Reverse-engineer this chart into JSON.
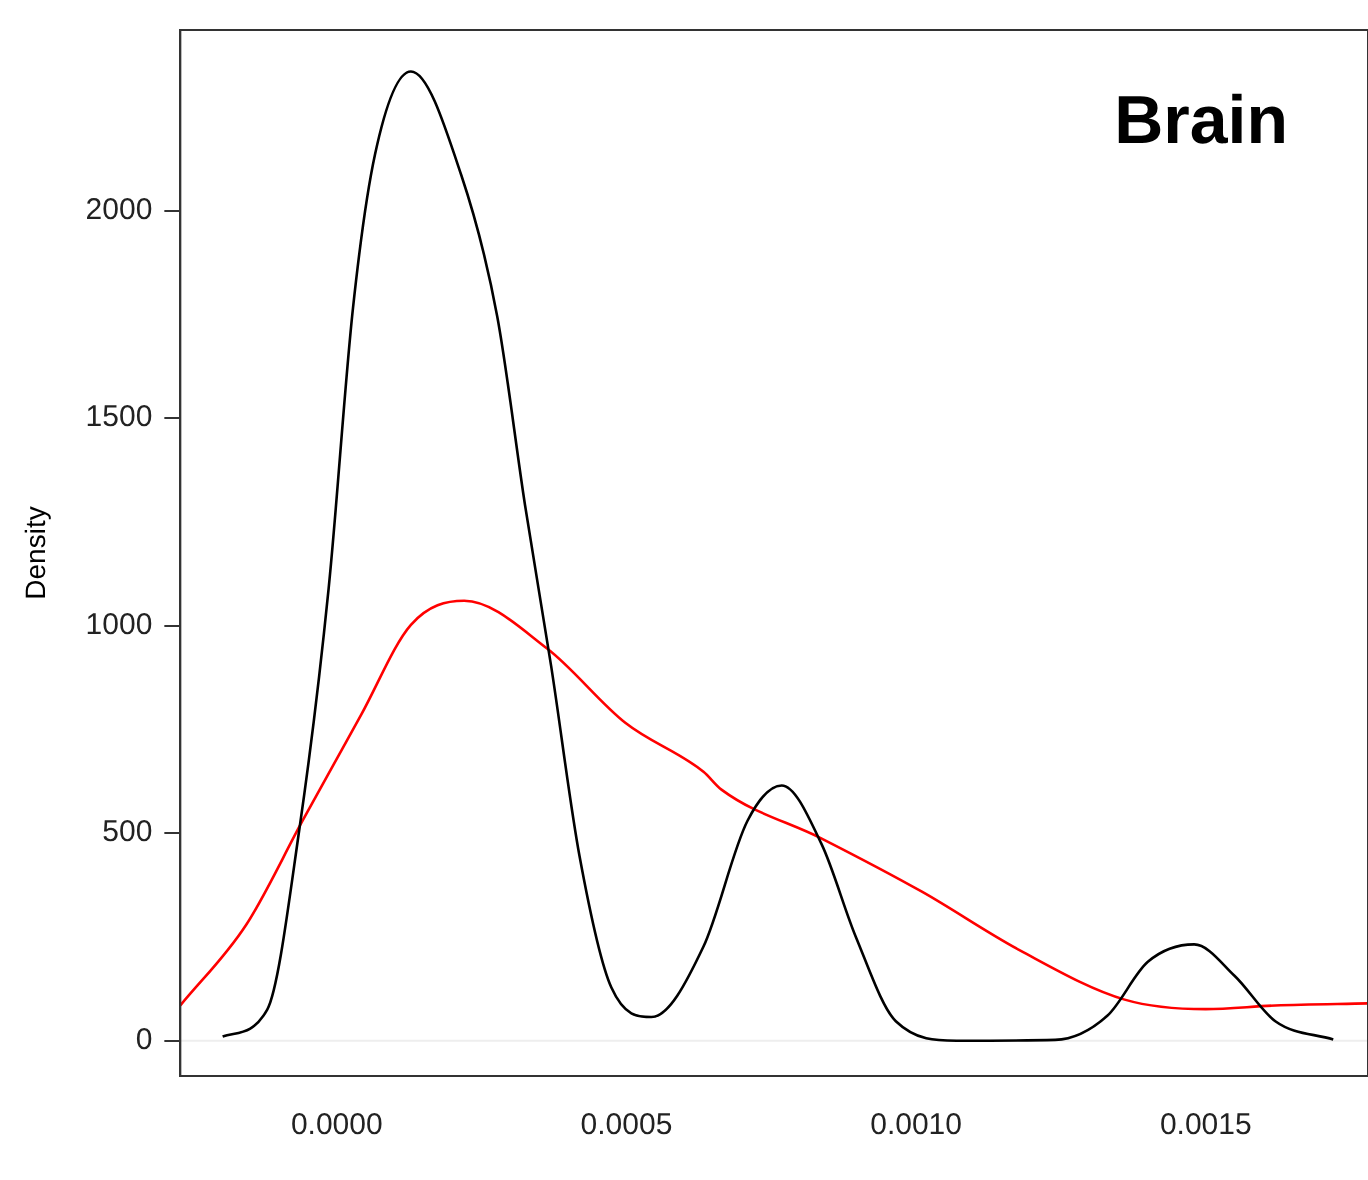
{
  "chart_data": {
    "type": "line",
    "title": "Brain",
    "ylabel": "Density",
    "xlim": [
      -0.00027,
      0.00178
    ],
    "xticks": [
      {
        "value": 0,
        "label": "0.0000"
      },
      {
        "value": 0.0005,
        "label": "0.0005"
      },
      {
        "value": 0.001,
        "label": "0.0010"
      },
      {
        "value": 0.0015,
        "label": "0.0015"
      }
    ],
    "ylim": [
      -85,
      2435
    ],
    "yticks": [
      0,
      500,
      1000,
      1500,
      2000
    ],
    "grid": false,
    "legend": false,
    "marker": "none",
    "line_style": "solid",
    "ref_lines": [
      {
        "axis": "y",
        "value": 0,
        "color": "#eeeeee"
      }
    ],
    "series": [
      {
        "color": "#000000",
        "x": [
          -0.000197,
          -0.00012,
          -6.4e-05,
          -1.4e-05,
          2.8e-05,
          6.6e-05,
          0.000128,
          0.000215,
          0.000277,
          0.000325,
          0.00037,
          0.000419,
          0.000474,
          0.000543,
          0.000633,
          0.000709,
          0.000768,
          0.000837,
          0.000896,
          0.000965,
          0.00107,
          0.00124,
          0.00133,
          0.0014,
          0.00148,
          0.00155,
          0.00162,
          0.00172
        ],
        "values": [
          10,
          75,
          515,
          1090,
          1765,
          2135,
          2335,
          2085,
          1745,
          1290,
          903,
          445,
          128,
          57,
          227,
          530,
          615,
          473,
          250,
          47,
          0,
          2,
          60,
          190,
          232,
          156,
          47,
          3
        ]
      },
      {
        "color": "#ff0000",
        "x": [
          -0.00027,
          -0.000156,
          -5.9e-05,
          4.2e-05,
          0.000128,
          0.00022,
          0.000363,
          0.000498,
          0.000633,
          0.000664,
          0.000837,
          0.00101,
          0.00118,
          0.00136,
          0.0015,
          0.00162,
          0.00178
        ],
        "values": [
          85,
          280,
          530,
          785,
          1002,
          1060,
          945,
          766,
          648,
          605,
          487,
          359,
          217,
          99,
          76,
          85,
          90
        ]
      }
    ]
  }
}
